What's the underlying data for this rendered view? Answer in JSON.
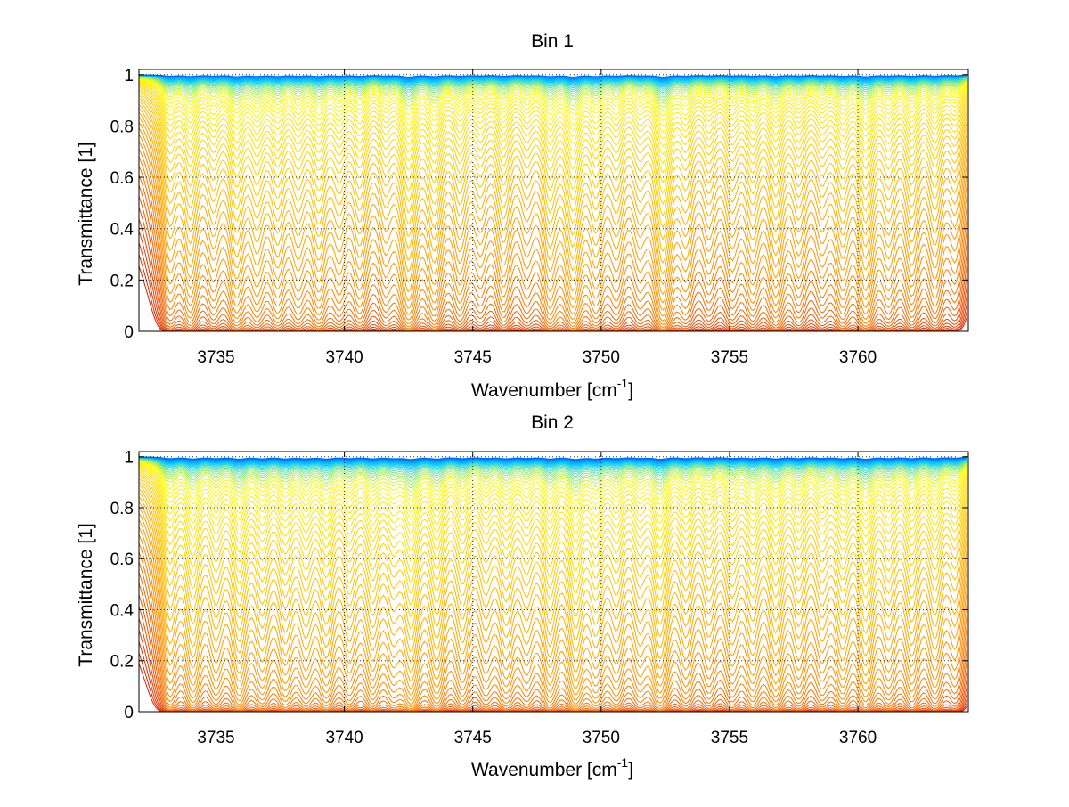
{
  "chart_data": [
    {
      "type": "line",
      "title": "Bin 1",
      "xlabel": "Wavenumber [cm",
      "xlabel_sup": "-1",
      "xlabel_end": "]",
      "ylabel": "Transmittance [1]",
      "xlim": [
        3732,
        3764.3
      ],
      "ylim": [
        0,
        1.02
      ],
      "xticks": [
        3735,
        3740,
        3745,
        3750,
        3755,
        3760
      ],
      "xtick_labels": [
        "3735",
        "3740",
        "3745",
        "3750",
        "3755",
        "3760"
      ],
      "yticks": [
        0,
        0.2,
        0.4,
        0.6,
        0.8,
        1
      ],
      "ytick_labels": [
        "0",
        "0.2",
        "0.4",
        "0.6",
        "0.8",
        "1"
      ],
      "grid": true,
      "series_count": 60,
      "colormap": [
        "#0066ff",
        "#00ccff",
        "#ffff00",
        "#ffcc00",
        "#ff8800",
        "#dd2200"
      ],
      "absorption_lines": [
        {
          "x": 3733.2,
          "depth": 0.55
        },
        {
          "x": 3734.0,
          "depth": 0.65
        },
        {
          "x": 3734.9,
          "depth": 0.45
        },
        {
          "x": 3735.8,
          "depth": 0.75
        },
        {
          "x": 3736.6,
          "depth": 0.55
        },
        {
          "x": 3737.4,
          "depth": 0.6
        },
        {
          "x": 3738.2,
          "depth": 0.5
        },
        {
          "x": 3739.0,
          "depth": 0.65
        },
        {
          "x": 3739.8,
          "depth": 0.45
        },
        {
          "x": 3740.6,
          "depth": 0.55
        },
        {
          "x": 3741.6,
          "depth": 0.4
        },
        {
          "x": 3742.5,
          "depth": 0.95
        },
        {
          "x": 3743.5,
          "depth": 0.7
        },
        {
          "x": 3744.5,
          "depth": 0.5
        },
        {
          "x": 3745.3,
          "depth": 0.35
        },
        {
          "x": 3746.2,
          "depth": 0.55
        },
        {
          "x": 3747.1,
          "depth": 0.35
        },
        {
          "x": 3748.0,
          "depth": 0.65
        },
        {
          "x": 3748.9,
          "depth": 0.9
        },
        {
          "x": 3749.8,
          "depth": 0.6
        },
        {
          "x": 3750.6,
          "depth": 0.45
        },
        {
          "x": 3751.5,
          "depth": 0.35
        },
        {
          "x": 3752.4,
          "depth": 1.0
        },
        {
          "x": 3753.3,
          "depth": 0.45
        },
        {
          "x": 3754.2,
          "depth": 0.35
        },
        {
          "x": 3755.1,
          "depth": 0.4
        },
        {
          "x": 3755.9,
          "depth": 0.5
        },
        {
          "x": 3756.8,
          "depth": 0.65
        },
        {
          "x": 3757.7,
          "depth": 0.45
        },
        {
          "x": 3758.6,
          "depth": 0.35
        },
        {
          "x": 3759.4,
          "depth": 0.55
        },
        {
          "x": 3760.3,
          "depth": 0.8
        },
        {
          "x": 3761.2,
          "depth": 0.45
        },
        {
          "x": 3762.1,
          "depth": 0.55
        },
        {
          "x": 3763.0,
          "depth": 0.5
        },
        {
          "x": 3763.8,
          "depth": 0.35
        }
      ]
    },
    {
      "type": "line",
      "title": "Bin 2",
      "xlabel": "Wavenumber [cm",
      "xlabel_sup": "-1",
      "xlabel_end": "]",
      "ylabel": "Transmittance [1]",
      "xlim": [
        3732,
        3764.3
      ],
      "ylim": [
        0,
        1.02
      ],
      "xticks": [
        3735,
        3740,
        3745,
        3750,
        3755,
        3760
      ],
      "xtick_labels": [
        "3735",
        "3740",
        "3745",
        "3750",
        "3755",
        "3760"
      ],
      "yticks": [
        0,
        0.2,
        0.4,
        0.6,
        0.8,
        1
      ],
      "ytick_labels": [
        "0",
        "0.2",
        "0.4",
        "0.6",
        "0.8",
        "1"
      ],
      "grid": true,
      "series_count": 60,
      "colormap": [
        "#0066ff",
        "#00ccff",
        "#ffff00",
        "#ffcc00",
        "#ff8800",
        "#dd2200"
      ],
      "absorption_lines": [
        {
          "x": 3733.2,
          "depth": 0.75
        },
        {
          "x": 3734.1,
          "depth": 0.85
        },
        {
          "x": 3735.0,
          "depth": 0.6
        },
        {
          "x": 3735.9,
          "depth": 0.9
        },
        {
          "x": 3736.8,
          "depth": 0.7
        },
        {
          "x": 3737.7,
          "depth": 0.75
        },
        {
          "x": 3738.5,
          "depth": 0.65
        },
        {
          "x": 3739.3,
          "depth": 0.8
        },
        {
          "x": 3740.2,
          "depth": 0.6
        },
        {
          "x": 3741.1,
          "depth": 0.7
        },
        {
          "x": 3741.9,
          "depth": 0.55
        },
        {
          "x": 3742.6,
          "depth": 1.0
        },
        {
          "x": 3743.6,
          "depth": 0.85
        },
        {
          "x": 3744.6,
          "depth": 0.65
        },
        {
          "x": 3745.5,
          "depth": 0.5
        },
        {
          "x": 3746.3,
          "depth": 0.7
        },
        {
          "x": 3747.1,
          "depth": 0.5
        },
        {
          "x": 3748.0,
          "depth": 0.8
        },
        {
          "x": 3749.0,
          "depth": 1.0
        },
        {
          "x": 3749.8,
          "depth": 0.75
        },
        {
          "x": 3750.6,
          "depth": 0.6
        },
        {
          "x": 3751.5,
          "depth": 0.5
        },
        {
          "x": 3752.3,
          "depth": 1.0
        },
        {
          "x": 3753.3,
          "depth": 0.6
        },
        {
          "x": 3754.2,
          "depth": 0.5
        },
        {
          "x": 3755.1,
          "depth": 0.55
        },
        {
          "x": 3755.9,
          "depth": 0.65
        },
        {
          "x": 3756.8,
          "depth": 0.8
        },
        {
          "x": 3757.7,
          "depth": 0.6
        },
        {
          "x": 3758.6,
          "depth": 0.5
        },
        {
          "x": 3759.4,
          "depth": 0.7
        },
        {
          "x": 3760.3,
          "depth": 0.95
        },
        {
          "x": 3761.2,
          "depth": 0.6
        },
        {
          "x": 3762.1,
          "depth": 0.7
        },
        {
          "x": 3763.0,
          "depth": 0.65
        },
        {
          "x": 3763.8,
          "depth": 0.5
        }
      ]
    }
  ]
}
